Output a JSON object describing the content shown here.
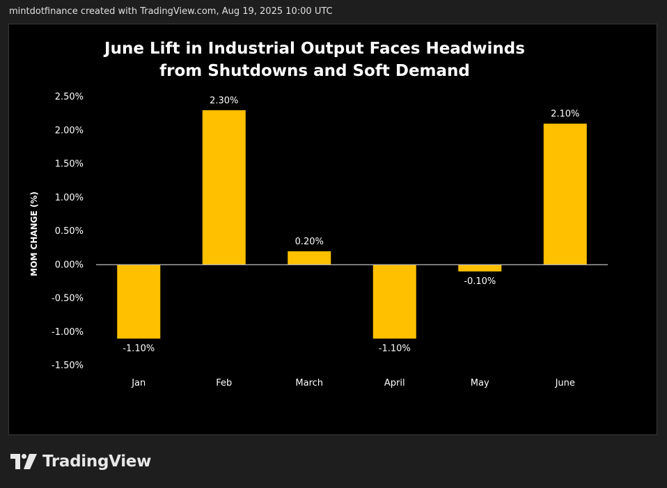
{
  "header": {
    "attribution": "mintdotfinance created with TradingView.com, Aug 19, 2025 10:00 UTC"
  },
  "footer": {
    "brand_name": "TradingView",
    "logo_icon": "tradingview-logo-icon"
  },
  "colors": {
    "bar": "#FFC000",
    "background": "#000000",
    "text": "#FFFFFF",
    "axis": "#BFBFBF"
  },
  "chart_data": {
    "type": "bar",
    "title_lines": [
      "June Lift in Industrial Output Faces Headwinds",
      "from Shutdowns and Soft Demand"
    ],
    "xlabel": "",
    "ylabel": "MOM CHANGE (%)",
    "categories": [
      "Jan",
      "Feb",
      "March",
      "April",
      "May",
      "June"
    ],
    "values": [
      -1.1,
      2.3,
      0.2,
      -1.1,
      -0.1,
      2.1
    ],
    "data_labels": [
      "-1.10%",
      "2.30%",
      "0.20%",
      "-1.10%",
      "-0.10%",
      "2.10%"
    ],
    "ylim": [
      -1.5,
      2.5
    ],
    "yticks": [
      2.5,
      2.0,
      1.5,
      1.0,
      0.5,
      0.0,
      -0.5,
      -1.0,
      -1.5
    ],
    "ytick_labels": [
      "2.50%",
      "2.00%",
      "1.50%",
      "1.00%",
      "0.50%",
      "0.00%",
      "-0.50%",
      "-1.00%",
      "-1.50%"
    ],
    "grid": false,
    "legend": "none"
  }
}
